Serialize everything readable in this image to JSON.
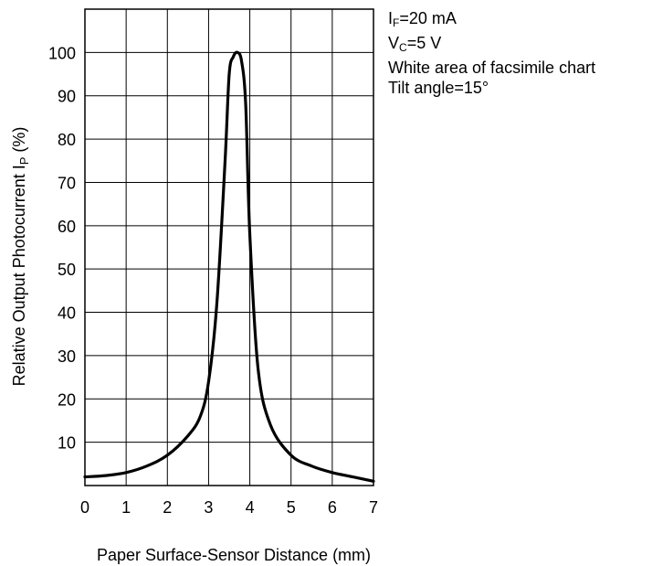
{
  "chart_data": {
    "type": "line",
    "title": "",
    "xlabel": "Paper Surface-Sensor Distance (mm)",
    "ylabel_prefix": "Relative Output Photocurrent I",
    "ylabel_sub": "P",
    "ylabel_suffix": " (%)",
    "xlim": [
      0,
      7
    ],
    "ylim": [
      0,
      110
    ],
    "x_ticks": [
      0,
      1,
      2,
      3,
      4,
      5,
      6,
      7
    ],
    "y_ticks": [
      10,
      20,
      30,
      40,
      50,
      60,
      70,
      80,
      90,
      100
    ],
    "grid": true,
    "legend": "none",
    "line_color": "#000000",
    "series": [
      {
        "x": [
          0,
          0.5,
          1,
          1.5,
          2,
          2.5,
          2.8,
          3,
          3.2,
          3.4,
          3.5,
          3.6,
          3.7,
          3.8,
          3.9,
          4,
          4.2,
          4.5,
          5,
          5.5,
          6,
          6.5,
          7
        ],
        "y": [
          2,
          2.3,
          3,
          4.5,
          7,
          11.5,
          16,
          24,
          42,
          75,
          95,
          99,
          100,
          98,
          88,
          58,
          27,
          14,
          7,
          4.5,
          3,
          2,
          1
        ]
      }
    ]
  },
  "conditions": {
    "line1_main": "I",
    "line1_sub": "F",
    "line1_rest": "=20 mA",
    "line2_main": "V",
    "line2_sub": "C",
    "line2_rest": "=5 V",
    "line3": "White area of facsimile chart",
    "line4": "Tilt angle=15°"
  }
}
